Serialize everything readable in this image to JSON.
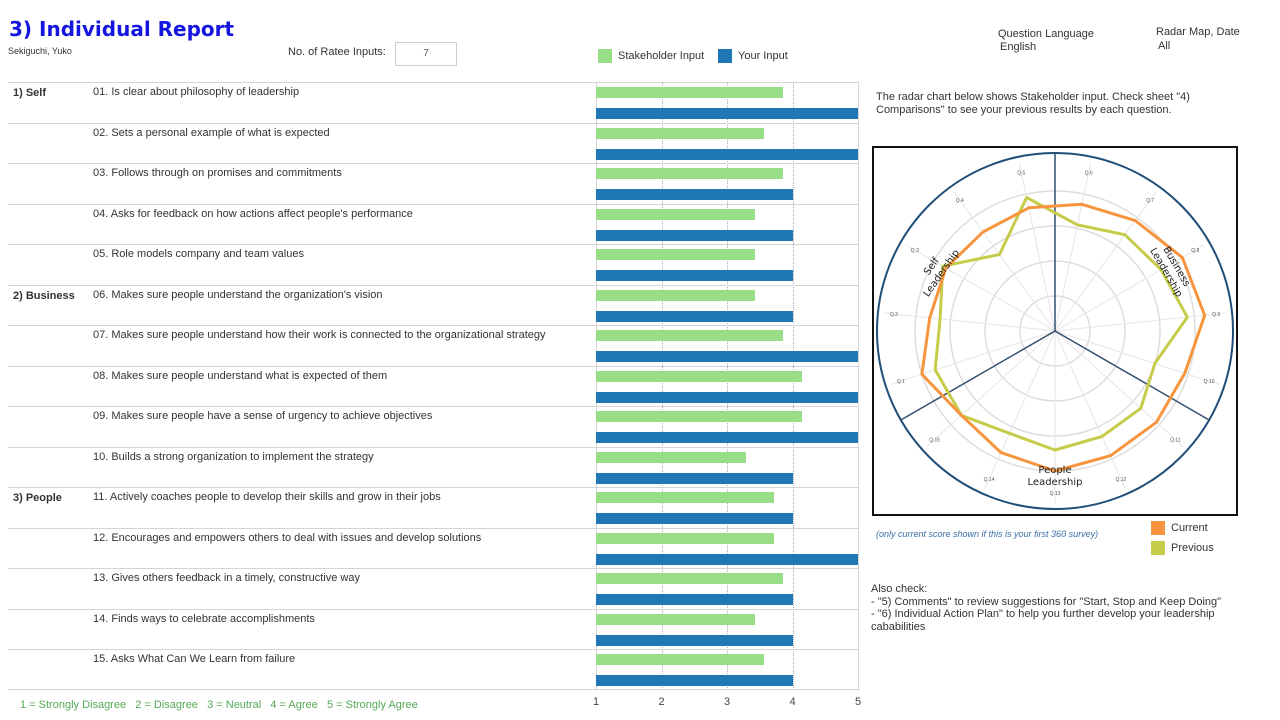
{
  "header": {
    "title": "3) Individual Report",
    "name": "Sekiguchi, Yuko",
    "ratee_label": "No. of Ratee Inputs:",
    "ratee_value": "7"
  },
  "legend": {
    "stakeholder": "Stakeholder Input",
    "yours": "Your Input",
    "stakeholder_color": "#98de86",
    "yours_color": "#1f77b4"
  },
  "filters": {
    "language_label": "Question Language",
    "language_value": "English",
    "radar_label": "Radar Map, Date",
    "radar_value": "All"
  },
  "info_text": "The radar chart below shows Stakeholder input. Check sheet \"4) Comparisons\" to  see your previous results by each question.",
  "chart_data": [
    {
      "type": "bar",
      "xlim": [
        1,
        5
      ],
      "ticks": [
        "1",
        "2",
        "3",
        "4",
        "5"
      ],
      "grid": true,
      "groups": [
        "1) Self",
        "2) Business",
        "3) People"
      ],
      "categories": [
        {
          "group": "1) Self",
          "label": "01. Is clear about philosophy of leadership"
        },
        {
          "group": "",
          "label": "02. Sets a personal example of what is expected"
        },
        {
          "group": "",
          "label": "03. Follows through on promises and commitments"
        },
        {
          "group": "",
          "label": "04. Asks for feedback on how  actions affect people's performance"
        },
        {
          "group": "",
          "label": "05. Role models company and team values"
        },
        {
          "group": "2) Business",
          "label": "06. Makes sure people understand the organization's vision"
        },
        {
          "group": "",
          "label": "07. Makes sure people understand how their work is connected to the organizational strategy"
        },
        {
          "group": "",
          "label": "08. Makes sure people understand what is expected of them"
        },
        {
          "group": "",
          "label": "09. Makes sure people have a sense of urgency to achieve  objectives"
        },
        {
          "group": "",
          "label": "10. Builds a strong organization to implement the strategy"
        },
        {
          "group": "3) People",
          "label": "11. Actively coaches people to develop their skills and grow in their jobs"
        },
        {
          "group": "",
          "label": "12. Encourages and empowers others to deal with issues and develop solutions"
        },
        {
          "group": "",
          "label": "13. Gives others feedback in a timely, constructive way"
        },
        {
          "group": "",
          "label": "14. Finds ways to celebrate accomplishments"
        },
        {
          "group": "",
          "label": "15. Asks What Can We Learn from failure"
        }
      ],
      "series": [
        {
          "name": "Stakeholder Input",
          "color": "#98de86",
          "values": [
            3.86,
            3.57,
            3.86,
            3.43,
            3.43,
            3.43,
            3.86,
            4.14,
            4.14,
            3.29,
            3.71,
            3.71,
            3.86,
            3.43,
            3.57
          ]
        },
        {
          "name": "Your Input",
          "color": "#1f77b4",
          "values": [
            5,
            5,
            4,
            4,
            4,
            4,
            5,
            5,
            5,
            4,
            4,
            5,
            4,
            4,
            4
          ]
        }
      ],
      "scale_note": "1 = Strongly Disagree   2 = Disagree   3 = Neutral   4 = Agree   5 = Strongly Agree"
    },
    {
      "type": "radar",
      "axes": [
        "Q.1",
        "Q.2",
        "Q.3",
        "Q.4",
        "Q.5",
        "Q.6",
        "Q.7",
        "Q.8",
        "Q.9",
        "Q.10",
        "Q.11",
        "Q.12",
        "Q.13",
        "Q.14",
        "Q.15"
      ],
      "sections": [
        "Self Leadership",
        "Business Leadership",
        "People Leadership"
      ],
      "series": [
        {
          "name": "Current",
          "color": "#f7953e",
          "values": [
            4.0,
            3.6,
            3.6,
            3.5,
            3.6,
            3.7,
            3.9,
            4.2,
            4.3,
            3.9,
            3.9,
            3.9,
            4.0,
            3.8,
            3.6
          ]
        },
        {
          "name": "Previous",
          "color": "#c6cc4a",
          "values": [
            3.6,
            3.3,
            3.7,
            2.7,
            3.9,
            3.1,
            3.4,
            3.5,
            3.8,
            3.0,
            3.3,
            3.3,
            3.4,
            3.2,
            3.6
          ]
        }
      ]
    }
  ],
  "radar_note": "(only current score shown if this is your first 360 survey)",
  "radar_legend": {
    "current": "Current",
    "previous": "Previous"
  },
  "also_check": [
    "Also check:",
    "- \"5) Comments\"  to review suggestions for \"Start, Stop and Keep Doing\"",
    "- \"6) Individual Action Plan\" to help you further develop your leadership cababilities"
  ]
}
